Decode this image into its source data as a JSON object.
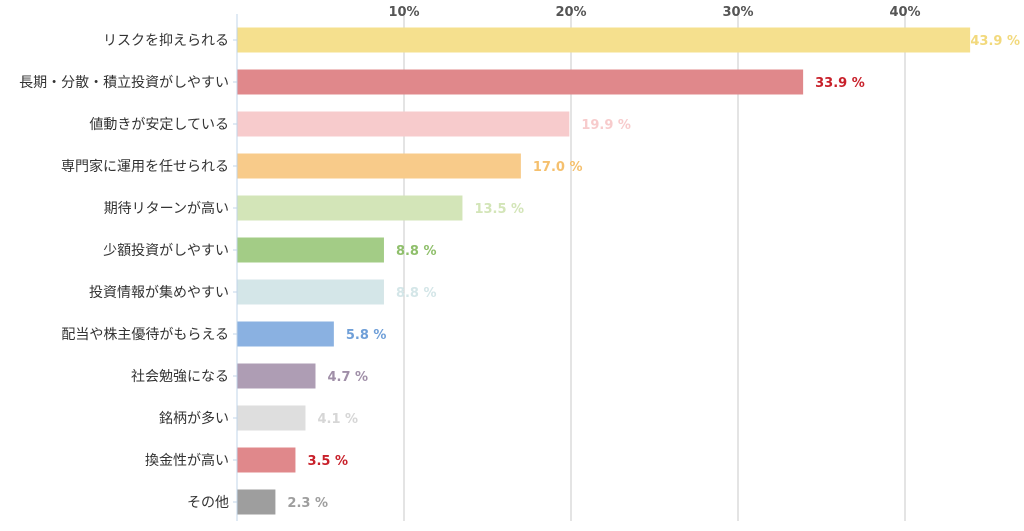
{
  "chart_data": {
    "type": "bar",
    "orientation": "horizontal",
    "title": "",
    "xlabel": "",
    "ylabel": "",
    "xlim": [
      0,
      45
    ],
    "x_ticks": [
      10,
      20,
      30,
      40
    ],
    "x_tick_labels": [
      "10%",
      "20%",
      "30%",
      "40%"
    ],
    "grid": true,
    "categories": [
      "リスクを抑えられる",
      "長期・分散・積立投資がしやすい",
      "値動きが安定している",
      "専門家に運用を任せられる",
      "期待リターンが高い",
      "少額投資がしやすい",
      "投資情報が集めやすい",
      "配当や株主優待がもらえる",
      "社会勉強になる",
      "銘柄が多い",
      "換金性が高い",
      "その他"
    ],
    "values": [
      43.9,
      33.9,
      19.9,
      17.0,
      13.5,
      8.8,
      8.8,
      5.8,
      4.7,
      4.1,
      3.5,
      2.3
    ],
    "data_labels": [
      "43.9 %",
      "33.9 %",
      "19.9 %",
      "17.0 %",
      "13.5 %",
      "8.8 %",
      "8.8 %",
      "5.8 %",
      "4.7 %",
      "4.1 %",
      "3.5 %",
      "2.3 %"
    ],
    "bar_colors": [
      "#f5e08e",
      "#e0888b",
      "#f7cbcc",
      "#f8cb8a",
      "#d3e5b8",
      "#a3cc86",
      "#d4e6e8",
      "#8ab1e1",
      "#ae9db4",
      "#dedede",
      "#e0888b",
      "#9e9e9e"
    ],
    "label_colors": [
      "#f2d97c",
      "#c8202a",
      "#f7cbcc",
      "#f5c06e",
      "#d3e5b8",
      "#8fbf6b",
      "#d4e6e8",
      "#6f9fd8",
      "#a08fa8",
      "#d6d6d6",
      "#c8202a",
      "#9e9e9e"
    ]
  }
}
